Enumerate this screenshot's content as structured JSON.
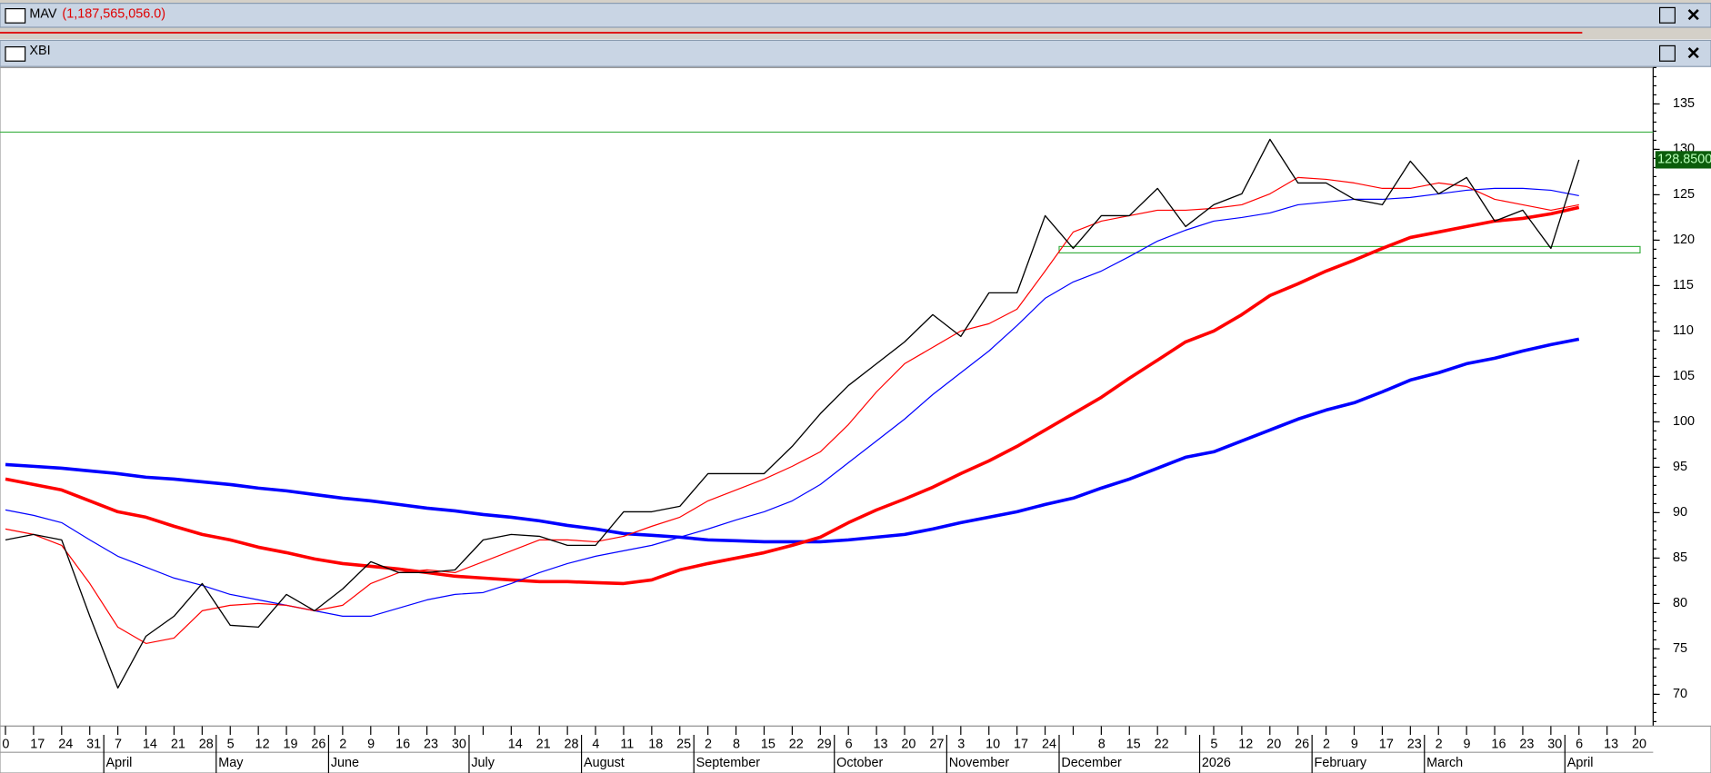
{
  "volume_panel": {
    "title": "MAV",
    "value_label": "(1,187,565,056.0)"
  },
  "chart_data": {
    "type": "line",
    "title": "XBI",
    "categories": [
      "0",
      "17",
      "24",
      "31",
      "7",
      "14",
      "21",
      "28",
      "5",
      "12",
      "19",
      "26",
      "2",
      "9",
      "16",
      "23",
      "30",
      null,
      "14",
      "21",
      "28",
      "4",
      "11",
      "18",
      "25",
      "2",
      "8",
      "15",
      "22",
      "29",
      "6",
      "13",
      "20",
      "27",
      "3",
      "10",
      "17",
      "24",
      null,
      "8",
      "15",
      "22",
      null,
      "5",
      "12",
      "20",
      "26",
      "2",
      "9",
      "17",
      "23",
      "2",
      "9",
      "16",
      "23",
      "30",
      "6",
      "13",
      "20"
    ],
    "month_labels": [
      null,
      null,
      null,
      null,
      "April",
      null,
      null,
      null,
      "May",
      null,
      null,
      null,
      "June",
      null,
      null,
      null,
      null,
      "July",
      null,
      null,
      null,
      "August",
      null,
      null,
      null,
      "September",
      null,
      null,
      null,
      null,
      "October",
      null,
      null,
      null,
      "November",
      null,
      null,
      null,
      "December",
      null,
      null,
      null,
      null,
      "2026",
      null,
      null,
      null,
      "February",
      null,
      null,
      null,
      "March",
      null,
      null,
      null,
      null,
      "April",
      null,
      null
    ],
    "series": [
      {
        "color": "#000000",
        "width": 1.1,
        "values": [
          87.0,
          87.6,
          87.0,
          78.6,
          70.7,
          76.4,
          78.6,
          82.2,
          77.6,
          77.4,
          81.0,
          79.2,
          81.6,
          84.6,
          83.4,
          83.4,
          83.7,
          87.0,
          87.6,
          87.4,
          86.4,
          86.4,
          90.1,
          90.1,
          90.7,
          94.3,
          94.3,
          94.3,
          97.3,
          100.9,
          104.0,
          106.4,
          108.8,
          111.8,
          109.4,
          114.2,
          114.2,
          122.7,
          119.1,
          122.7,
          122.7,
          125.7,
          121.5,
          123.9,
          125.1,
          131.1,
          126.3,
          126.3,
          124.5,
          123.9,
          128.7,
          125.1,
          126.9,
          122.1,
          123.3,
          119.1,
          128.85,
          null,
          null
        ]
      },
      {
        "color": "#ff0000",
        "width": 1,
        "values": [
          88.2,
          87.6,
          86.4,
          82.2,
          77.4,
          75.6,
          76.2,
          79.2,
          79.8,
          80.0,
          79.8,
          79.2,
          79.8,
          82.2,
          83.4,
          83.7,
          83.4,
          84.6,
          85.8,
          87.0,
          87.0,
          86.8,
          87.4,
          88.5,
          89.5,
          91.3,
          92.5,
          93.7,
          95.1,
          96.7,
          99.7,
          103.3,
          106.4,
          108.2,
          110.0,
          110.8,
          112.4,
          116.6,
          120.9,
          122.1,
          122.7,
          123.3,
          123.3,
          123.5,
          123.9,
          125.1,
          126.9,
          126.7,
          126.3,
          125.7,
          125.7,
          126.3,
          125.9,
          124.5,
          123.9,
          123.3,
          123.9,
          null,
          null
        ]
      },
      {
        "color": "#0000ff",
        "width": 1,
        "values": [
          90.3,
          89.7,
          88.9,
          87.0,
          85.2,
          84.0,
          82.8,
          82.0,
          81.0,
          80.4,
          79.8,
          79.2,
          78.6,
          78.6,
          79.5,
          80.4,
          81.0,
          81.2,
          82.2,
          83.4,
          84.4,
          85.2,
          85.8,
          86.4,
          87.3,
          88.2,
          89.2,
          90.1,
          91.3,
          93.1,
          95.5,
          97.9,
          100.3,
          103.0,
          105.4,
          107.8,
          110.6,
          113.6,
          115.4,
          116.6,
          118.2,
          119.9,
          121.1,
          122.1,
          122.5,
          123.0,
          123.9,
          124.2,
          124.5,
          124.5,
          124.7,
          125.1,
          125.5,
          125.7,
          125.7,
          125.5,
          124.9,
          null,
          null
        ]
      },
      {
        "color": "#ff0000",
        "width": 3,
        "values": [
          93.7,
          93.1,
          92.5,
          91.3,
          90.1,
          89.5,
          88.5,
          87.6,
          87.0,
          86.2,
          85.6,
          84.9,
          84.4,
          84.1,
          83.8,
          83.4,
          83.0,
          82.8,
          82.6,
          82.4,
          82.4,
          82.3,
          82.2,
          82.6,
          83.7,
          84.4,
          85.0,
          85.6,
          86.4,
          87.3,
          88.9,
          90.3,
          91.5,
          92.8,
          94.3,
          95.7,
          97.3,
          99.1,
          100.9,
          102.7,
          104.8,
          106.8,
          108.8,
          110.0,
          111.8,
          113.9,
          115.2,
          116.6,
          117.8,
          119.1,
          120.3,
          120.9,
          121.5,
          122.1,
          122.4,
          122.9,
          123.6,
          null,
          null
        ]
      },
      {
        "color": "#0000ff",
        "width": 3,
        "values": [
          95.3,
          95.1,
          94.9,
          94.6,
          94.3,
          93.9,
          93.7,
          93.4,
          93.1,
          92.7,
          92.4,
          92.0,
          91.6,
          91.3,
          90.9,
          90.5,
          90.2,
          89.8,
          89.5,
          89.1,
          88.6,
          88.2,
          87.7,
          87.5,
          87.3,
          87.0,
          86.9,
          86.8,
          86.8,
          86.8,
          87.0,
          87.3,
          87.6,
          88.2,
          88.9,
          89.5,
          90.1,
          90.9,
          91.6,
          92.7,
          93.7,
          94.9,
          96.1,
          96.7,
          97.9,
          99.1,
          100.3,
          101.3,
          102.1,
          103.3,
          104.6,
          105.4,
          106.4,
          107.0,
          107.8,
          108.5,
          109.1,
          null,
          null
        ]
      }
    ],
    "last_price": {
      "value": 128.85,
      "label": "128.8500"
    },
    "level_line": {
      "value": 131.9,
      "color": "#3cb043"
    },
    "zone": {
      "low": 118.6,
      "high": 119.3,
      "start": 38,
      "color": "#3cb043"
    },
    "ylim": [
      66.5,
      139
    ],
    "yticks": [
      70,
      75,
      80,
      85,
      90,
      95,
      100,
      105,
      110,
      115,
      120,
      125,
      130,
      135
    ]
  }
}
